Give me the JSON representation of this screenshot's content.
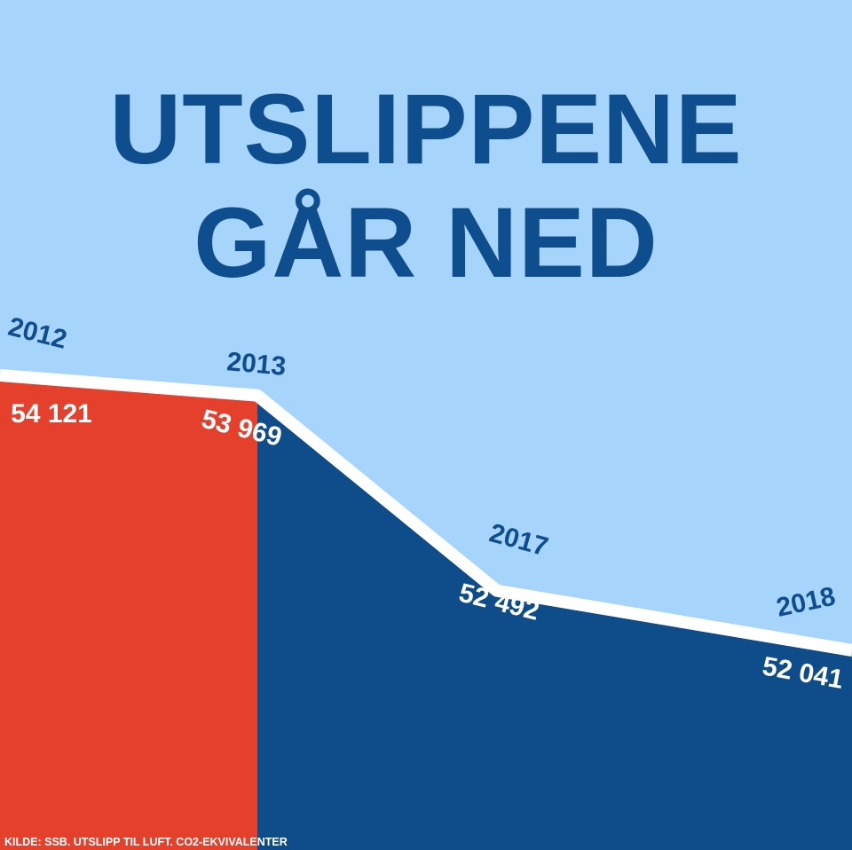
{
  "chart_data": {
    "type": "area",
    "title": "UTSLIPPENE GÅR NED",
    "categories": [
      "2012",
      "2013",
      "2017",
      "2018"
    ],
    "values": [
      54121,
      53969,
      52492,
      52041
    ],
    "value_labels": [
      "54 121",
      "53 969",
      "52 492",
      "52 041"
    ],
    "colors": [
      "#e5402c",
      "#0f4c8a"
    ],
    "line_color": "#ffffff",
    "source": "KILDE: SSB. UTSLIPP TIL LUFT. CO2-EKVIVALENTER"
  }
}
